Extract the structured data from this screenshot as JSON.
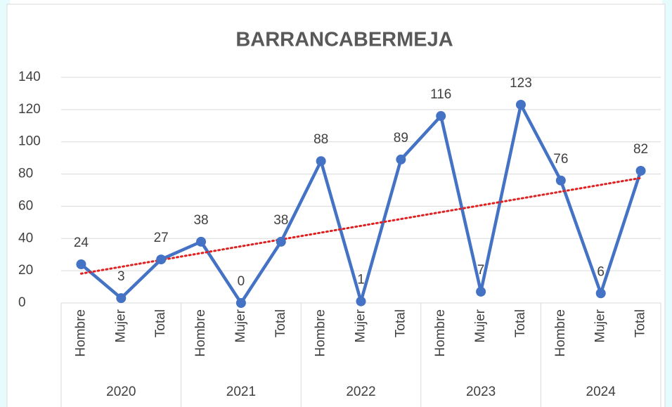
{
  "chart_data": {
    "type": "line",
    "title": "BARRANCABERMEJA",
    "categories": [
      "Hombre",
      "Mujer",
      "Total",
      "Hombre",
      "Mujer",
      "Total",
      "Hombre",
      "Mujer",
      "Total",
      "Hombre",
      "Mujer",
      "Total",
      "Hombre",
      "Mujer",
      "Total"
    ],
    "groups": [
      "2020",
      "2021",
      "2022",
      "2023",
      "2024"
    ],
    "series": [
      {
        "name": "BARRANCABERMEJA",
        "color": "#4472c4",
        "values": [
          24,
          3,
          27,
          38,
          0,
          38,
          88,
          1,
          89,
          116,
          7,
          123,
          76,
          6,
          82
        ]
      }
    ],
    "ylim": [
      0,
      140
    ],
    "yticks": [
      0,
      20,
      40,
      60,
      80,
      100,
      120,
      140
    ],
    "grid": true,
    "trendline": {
      "type": "linear",
      "color": "#e02020"
    }
  }
}
